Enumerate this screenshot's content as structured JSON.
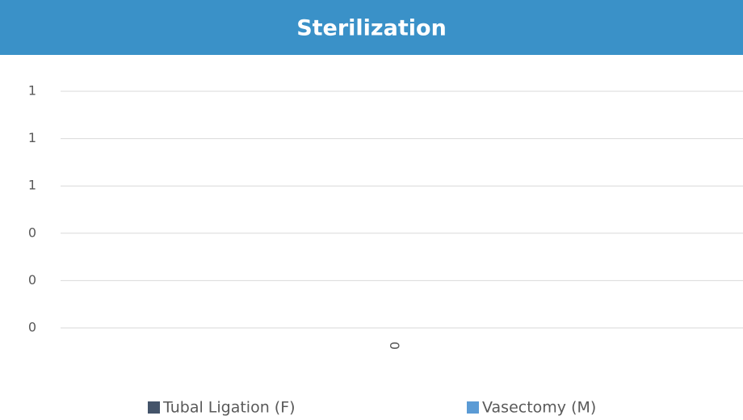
{
  "chart_data": {
    "type": "bar",
    "title": "Sterilization",
    "categories": [
      "0"
    ],
    "series": [
      {
        "name": "Tubal Ligation (F)",
        "color": "#44546a",
        "values": [
          0
        ]
      },
      {
        "name": "Vasectomy (M)",
        "color": "#5b9bd5",
        "values": [
          0
        ]
      }
    ],
    "ylim": [
      0,
      1
    ],
    "yticks": [
      0,
      {
        "value": 0.2,
        "label": "0"
      },
      {
        "value": 0.4,
        "label": "0"
      },
      {
        "value": 0.6,
        "label": "1"
      },
      {
        "value": 0.8,
        "label": "1"
      },
      1
    ],
    "grid": true,
    "legend": "bottom"
  }
}
